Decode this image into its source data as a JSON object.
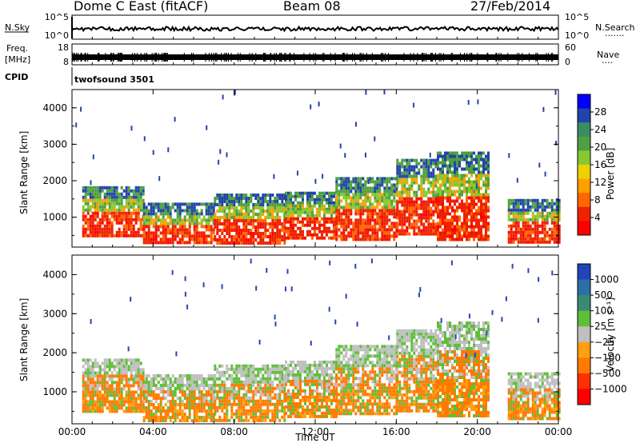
{
  "header": {
    "station": "Dome C East (fitACF)",
    "beam": "Beam 08",
    "date": "27/Feb/2014"
  },
  "nsky_panel": {
    "left_label": "N.Sky",
    "left_ticks": [
      "10^5",
      "10^0"
    ],
    "right_ticks": [
      "10^5",
      "10^0"
    ],
    "right_label": "N.Search",
    "right_label_dots": "·······"
  },
  "freq_panel": {
    "left_label_line1": "Freq.",
    "left_label_line2": "[MHz]",
    "left_ticks": [
      "18",
      "8"
    ],
    "right_ticks": [
      "60",
      "0"
    ],
    "right_label": "Nave",
    "right_label_dots": "····"
  },
  "cpid": {
    "label": "CPID",
    "program": "twofsound 3501"
  },
  "chart_data": [
    {
      "type": "heatmap",
      "quantity": "power",
      "ylabel": "Slant Range [km]",
      "yticks": [
        "1000",
        "2000",
        "3000",
        "4000"
      ],
      "ylim": [
        180,
        4500
      ],
      "colorbar_label": "Power [dB]",
      "colorbar_ticks": [
        "4",
        "8",
        "12",
        "16",
        "20",
        "24",
        "28"
      ],
      "colorbar_range": [
        0,
        32
      ],
      "colorscale": [
        "#0000ff",
        "#2244aa",
        "#3b8c62",
        "#4fa040",
        "#88c830",
        "#f0d000",
        "#ffa000",
        "#ff6600",
        "#ee2200",
        "#ff0000"
      ],
      "bands": [
        {
          "x": [
            0.5,
            3.5
          ],
          "range_km": [
            500,
            1850
          ]
        },
        {
          "x": [
            3.5,
            7
          ],
          "range_km": [
            300,
            1400
          ]
        },
        {
          "x": [
            7,
            10.5
          ],
          "range_km": [
            300,
            1650
          ]
        },
        {
          "x": [
            10.5,
            13
          ],
          "range_km": [
            400,
            1700
          ]
        },
        {
          "x": [
            13,
            16
          ],
          "range_km": [
            400,
            2100
          ]
        },
        {
          "x": [
            16,
            18
          ],
          "range_km": [
            500,
            2600
          ]
        },
        {
          "x": [
            18,
            20.5
          ],
          "range_km": [
            400,
            2800
          ]
        },
        {
          "x": [
            21.5,
            24
          ],
          "range_km": [
            350,
            1500
          ]
        }
      ]
    },
    {
      "type": "heatmap",
      "quantity": "velocity",
      "ylabel": "Slant Range [km]",
      "yticks": [
        "1000",
        "2000",
        "3000",
        "4000"
      ],
      "ylim": [
        180,
        4500
      ],
      "colorbar_label": "Velocity [m s⁻¹]",
      "colorbar_ticks": [
        "1000",
        "500",
        "100",
        "25",
        "−25",
        "−100",
        "−500",
        "−1000"
      ],
      "colorscale": [
        "#2244bb",
        "#2b6fa8",
        "#3a8a72",
        "#5fbf3a",
        "#bfbfbf",
        "#ffa010",
        "#ff7a00",
        "#ff3000",
        "#ff0000"
      ],
      "bands": [
        {
          "x": [
            0.5,
            3.5
          ],
          "range_km": [
            500,
            1850
          ]
        },
        {
          "x": [
            3.5,
            7
          ],
          "range_km": [
            300,
            1450
          ]
        },
        {
          "x": [
            7,
            10.5
          ],
          "range_km": [
            300,
            1700
          ]
        },
        {
          "x": [
            10.5,
            13
          ],
          "range_km": [
            400,
            1800
          ]
        },
        {
          "x": [
            13,
            16
          ],
          "range_km": [
            400,
            2200
          ]
        },
        {
          "x": [
            16,
            18
          ],
          "range_km": [
            500,
            2600
          ]
        },
        {
          "x": [
            18,
            20.5
          ],
          "range_km": [
            400,
            2800
          ]
        },
        {
          "x": [
            21.5,
            24
          ],
          "range_km": [
            350,
            1500
          ]
        }
      ],
      "xlabel": "Time UT",
      "xticks": [
        "00:00",
        "04:00",
        "08:00",
        "12:00",
        "16:00",
        "20:00",
        "00:00"
      ],
      "xlim_hours": [
        0,
        24
      ]
    }
  ]
}
